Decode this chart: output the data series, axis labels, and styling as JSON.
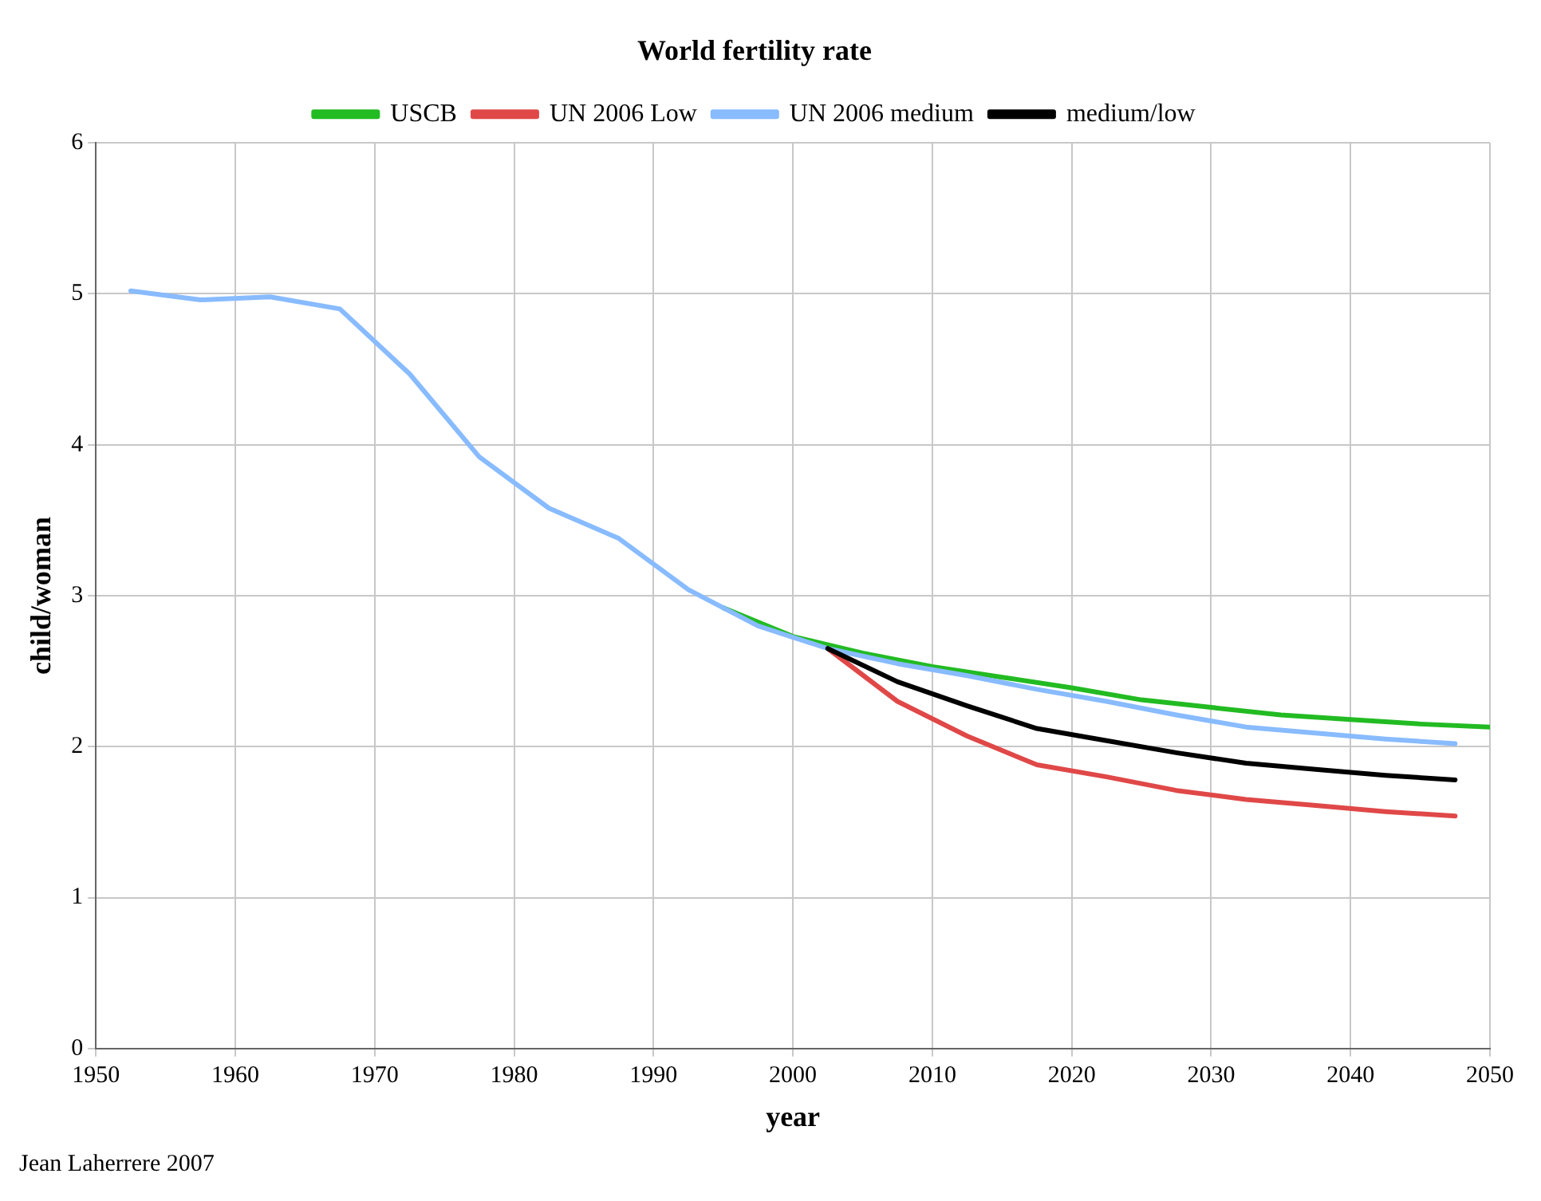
{
  "chart_data": {
    "type": "line",
    "title": "World fertility rate",
    "xlabel": "year",
    "ylabel": "child/woman",
    "xlim": [
      1950,
      2050
    ],
    "xticks": [
      1950,
      1960,
      1970,
      1980,
      1990,
      2000,
      2010,
      2020,
      2030,
      2040,
      2050
    ],
    "ylim": [
      0,
      6
    ],
    "yticks": [
      0,
      1,
      2,
      3,
      4,
      5,
      6
    ],
    "grid": true,
    "legend": "top",
    "marker": "none",
    "line_style": "solid",
    "annotations": [
      "Jean Laherrere 2007"
    ],
    "series": [
      {
        "name": "USCB",
        "color": "#22bb22",
        "x": [
          1995,
          2000,
          2005,
          2010,
          2015,
          2020,
          2025,
          2030,
          2035,
          2040,
          2045,
          2050
        ],
        "values": [
          2.92,
          2.73,
          2.62,
          2.53,
          2.46,
          2.39,
          2.31,
          2.26,
          2.21,
          2.18,
          2.15,
          2.13
        ]
      },
      {
        "name": "UN 2006 Low",
        "color": "#e04848",
        "x": [
          2002.5,
          2007.5,
          2012.5,
          2017.5,
          2022.5,
          2027.5,
          2032.5,
          2037.5,
          2042.5,
          2047.5
        ],
        "values": [
          2.65,
          2.3,
          2.07,
          1.88,
          1.8,
          1.71,
          1.65,
          1.61,
          1.57,
          1.54
        ]
      },
      {
        "name": "UN 2006 medium",
        "color": "#88bbff",
        "x": [
          1952.5,
          1957.5,
          1962.5,
          1967.5,
          1972.5,
          1977.5,
          1982.5,
          1987.5,
          1992.5,
          1997.5,
          2002.5,
          2007.5,
          2012.5,
          2017.5,
          2022.5,
          2027.5,
          2032.5,
          2037.5,
          2042.5,
          2047.5
        ],
        "values": [
          5.02,
          4.96,
          4.98,
          4.9,
          4.47,
          3.92,
          3.58,
          3.38,
          3.04,
          2.8,
          2.65,
          2.55,
          2.47,
          2.38,
          2.3,
          2.21,
          2.13,
          2.09,
          2.05,
          2.02
        ]
      },
      {
        "name": "medium/low",
        "color": "#000000",
        "x": [
          2002.5,
          2007.5,
          2012.5,
          2017.5,
          2022.5,
          2027.5,
          2032.5,
          2037.5,
          2042.5,
          2047.5
        ],
        "values": [
          2.65,
          2.43,
          2.27,
          2.12,
          2.04,
          1.96,
          1.89,
          1.85,
          1.81,
          1.78
        ]
      }
    ]
  }
}
